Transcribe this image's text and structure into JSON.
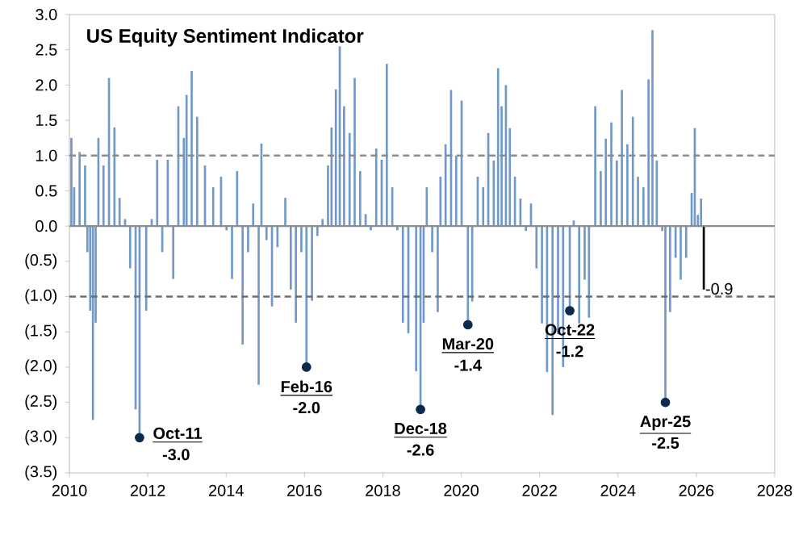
{
  "chart_data": {
    "type": "bar",
    "title": "US Equity Sentiment Indicator",
    "xlim": [
      2010,
      2028
    ],
    "xticks": [
      2010,
      2012,
      2014,
      2016,
      2018,
      2020,
      2022,
      2024,
      2026,
      2028
    ],
    "ylim": [
      -3.5,
      3.0
    ],
    "yticks": [
      {
        "value": -3.5,
        "label": "(3.5)"
      },
      {
        "value": -3.0,
        "label": "(3.0)"
      },
      {
        "value": -2.5,
        "label": "(2.5)"
      },
      {
        "value": -2.0,
        "label": "(2.0)"
      },
      {
        "value": -1.5,
        "label": "(1.5)"
      },
      {
        "value": -1.0,
        "label": "(1.0)"
      },
      {
        "value": -0.5,
        "label": "(0.5)"
      },
      {
        "value": 0,
        "label": "0.0"
      },
      0.5,
      {
        "value": 1,
        "label": "1.0"
      },
      1.5,
      {
        "value": 2,
        "label": "2.0"
      },
      2.5,
      {
        "value": 3,
        "label": "3.0"
      }
    ],
    "grid": false,
    "series": [
      {
        "color": "#7199c8",
        "x": [
          2010.05,
          2010.12,
          2010.26,
          2010.4,
          2010.46,
          2010.53,
          2010.6,
          2010.67,
          2010.74,
          2010.87,
          2011.01,
          2011.15,
          2011.28,
          2011.42,
          2011.55,
          2011.69,
          2011.79,
          2011.96,
          2012.1,
          2012.24,
          2012.37,
          2012.51,
          2012.65,
          2012.78,
          2012.92,
          2012.99,
          2013.12,
          2013.26,
          2013.46,
          2013.67,
          2013.87,
          2014.01,
          2014.15,
          2014.28,
          2014.42,
          2014.56,
          2014.69,
          2014.83,
          2014.9,
          2015.03,
          2015.17,
          2015.31,
          2015.51,
          2015.65,
          2015.78,
          2015.92,
          2016.05,
          2016.19,
          2016.33,
          2016.46,
          2016.6,
          2016.69,
          2016.8,
          2016.9,
          2017.01,
          2017.15,
          2017.28,
          2017.42,
          2017.56,
          2017.69,
          2017.83,
          2017.97,
          2018.1,
          2018.24,
          2018.37,
          2018.51,
          2018.65,
          2018.85,
          2018.96,
          2019.04,
          2019.12,
          2019.26,
          2019.4,
          2019.47,
          2019.6,
          2019.74,
          2019.87,
          2020.01,
          2020.17,
          2020.28,
          2020.42,
          2020.56,
          2020.69,
          2020.83,
          2020.94,
          2021.03,
          2021.14,
          2021.24,
          2021.37,
          2021.51,
          2021.65,
          2021.78,
          2021.92,
          2022.06,
          2022.19,
          2022.33,
          2022.47,
          2022.6,
          2022.77,
          2022.87,
          2023.01,
          2023.15,
          2023.26,
          2023.42,
          2023.56,
          2023.69,
          2023.83,
          2023.97,
          2024.1,
          2024.24,
          2024.38,
          2024.51,
          2024.65,
          2024.78,
          2024.88,
          2024.99,
          2025.13,
          2025.21,
          2025.33,
          2025.47,
          2025.6,
          2025.74,
          2025.88,
          2025.96,
          2026.04,
          2026.12
        ],
        "values": [
          1.25,
          0.55,
          1.05,
          0.86,
          -0.37,
          -1.2,
          -2.75,
          -1.37,
          1.25,
          0.86,
          2.1,
          1.4,
          0.4,
          0.1,
          -0.6,
          -2.6,
          -3.0,
          -1.2,
          0.1,
          0.94,
          -0.37,
          0.94,
          -0.75,
          1.7,
          1.25,
          1.86,
          2.2,
          1.55,
          0.86,
          0.55,
          0.7,
          -0.06,
          -0.75,
          0.78,
          -1.68,
          -0.37,
          0.32,
          -2.25,
          1.17,
          -0.2,
          -1.14,
          -0.3,
          0.4,
          -0.9,
          -1.37,
          -0.37,
          -2.0,
          -1.06,
          -0.14,
          0.1,
          0.86,
          1.4,
          1.94,
          2.55,
          1.7,
          1.32,
          2.1,
          0.78,
          0.17,
          -0.06,
          1.1,
          0.94,
          2.3,
          0.55,
          -0.06,
          -1.37,
          -1.52,
          -2.06,
          -2.6,
          -1.37,
          0.55,
          -0.37,
          -1.22,
          0.7,
          1.16,
          1.93,
          1.0,
          1.78,
          -1.4,
          -1.07,
          0.7,
          0.55,
          1.32,
          0.93,
          2.24,
          1.7,
          2.0,
          1.39,
          0.7,
          0.39,
          -0.07,
          0.32,
          -0.6,
          -1.38,
          -2.07,
          -2.68,
          -1.53,
          -2.0,
          -1.2,
          0.08,
          -1.38,
          -0.76,
          -1.3,
          1.7,
          0.78,
          1.24,
          1.47,
          0.93,
          1.93,
          1.16,
          1.55,
          0.7,
          0.55,
          2.08,
          2.78,
          0.93,
          -0.07,
          -2.5,
          -1.22,
          -0.45,
          -0.76,
          -0.45,
          0.47,
          1.39,
          0.16,
          0.39
        ]
      },
      {
        "type": "bar",
        "color": "#000000",
        "x": [
          2026.19
        ],
        "values": [
          -0.9
        ],
        "value_labels": [
          "-0.9"
        ]
      },
      {
        "type": "scatter",
        "color": "#0b2a4e",
        "marker": "circle",
        "x": [
          2011.79,
          2016.05,
          2018.96,
          2020.17,
          2022.77,
          2025.21
        ],
        "values": [
          -3.0,
          -2.0,
          -2.6,
          -1.4,
          -1.2,
          -2.5
        ],
        "value_labels": [
          "-3.0",
          "-2.0",
          "-2.6",
          "-1.4",
          "-1.2",
          "-2.5"
        ]
      }
    ],
    "ref_lines": [
      {
        "axis": "y",
        "value": 0,
        "color": "#8c8c8c",
        "line_style": "solid"
      },
      {
        "axis": "y",
        "value": 1.0,
        "color": "#8c8c8c",
        "line_style": "dashed"
      },
      {
        "axis": "y",
        "value": -1.0,
        "color": "#6e6e6e",
        "line_style": "dashed"
      }
    ],
    "annotations": [
      {
        "text": "Oct-11",
        "x": 2011.79,
        "y": -3.0
      },
      {
        "text": "Feb-16",
        "x": 2016.05,
        "y": -2.0
      },
      {
        "text": "Dec-18",
        "x": 2018.96,
        "y": -2.6
      },
      {
        "text": "Mar-20",
        "x": 2020.17,
        "y": -1.4
      },
      {
        "text": "Oct-22",
        "x": 2022.77,
        "y": -1.2
      },
      {
        "text": "Apr-25",
        "x": 2025.21,
        "y": -2.5
      }
    ]
  }
}
